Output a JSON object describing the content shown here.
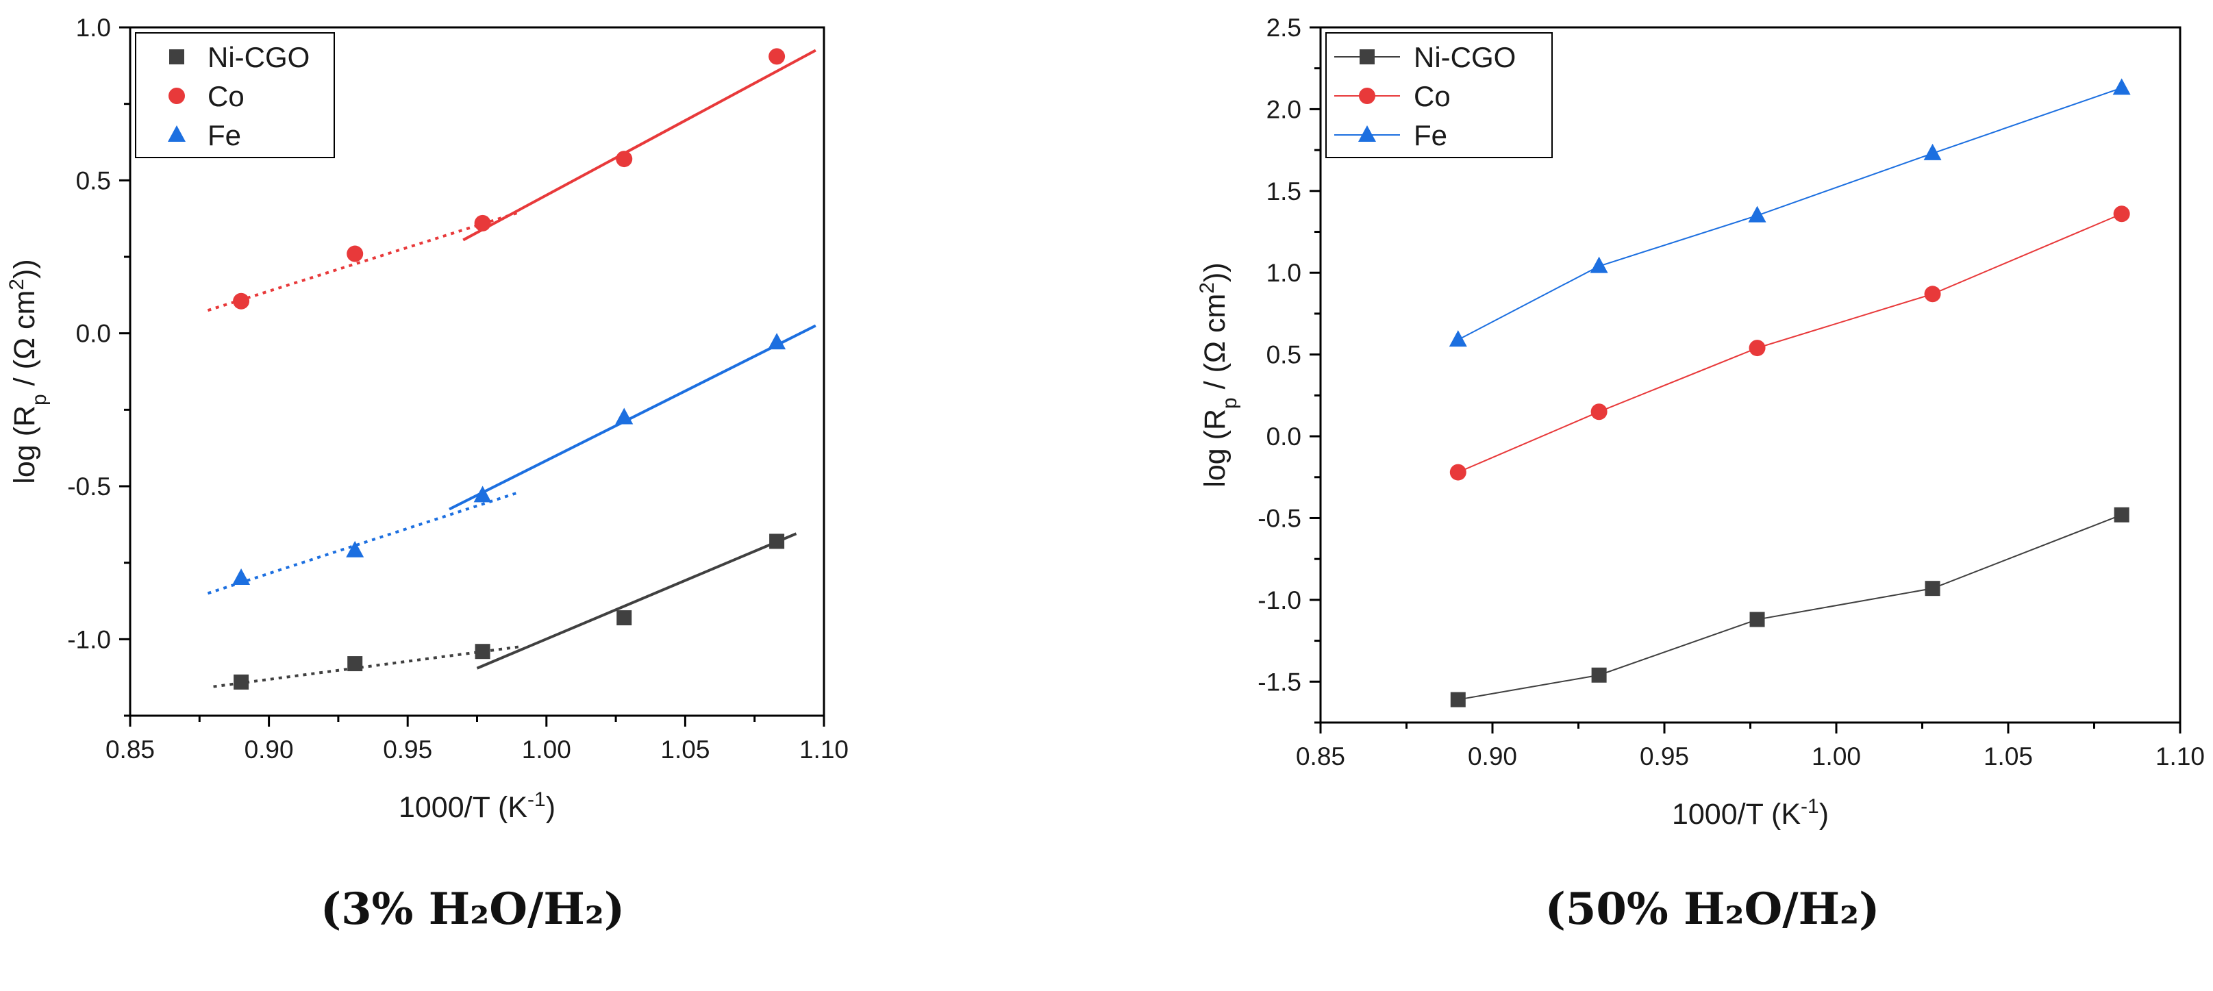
{
  "chart_data": [
    {
      "type": "scatter",
      "panel": "left",
      "xlabel": {
        "base": "1000/T (K",
        "sup": "-1",
        "tail": ")"
      },
      "ylabel": {
        "base": "log (R",
        "sub": "p",
        "mid": " / (Ω cm",
        "sup": "2",
        "tail": "))"
      },
      "xlim": [
        0.85,
        1.1
      ],
      "ylim": [
        -1.25,
        1.0
      ],
      "xticks": [
        "0.85",
        "0.90",
        "0.95",
        "1.00",
        "1.05",
        "1.10"
      ],
      "yticks": [
        "-1.0",
        "-0.5",
        "0.0",
        "0.5",
        "1.0"
      ],
      "ytick_values": [
        -1.0,
        -0.5,
        0.0,
        0.5,
        1.0
      ],
      "xtick_values": [
        0.85,
        0.9,
        0.95,
        1.0,
        1.05,
        1.1
      ],
      "legend_position": "top-left",
      "series": [
        {
          "name": "Ni-CGO",
          "color": "#404040",
          "marker": "square",
          "x": [
            0.89,
            0.931,
            0.977,
            1.028,
            1.083
          ],
          "y": [
            -1.14,
            -1.08,
            -1.04,
            -0.93,
            -0.68
          ],
          "fits": [
            {
              "style": "dotted",
              "x": [
                0.88,
                0.99
              ],
              "y": [
                -1.155,
                -1.025
              ]
            },
            {
              "style": "solid",
              "x": [
                0.975,
                1.09
              ],
              "y": [
                -1.095,
                -0.655
              ]
            }
          ]
        },
        {
          "name": "Co",
          "color": "#e8393a",
          "marker": "circle",
          "x": [
            0.89,
            0.931,
            0.977,
            1.028,
            1.083
          ],
          "y": [
            0.105,
            0.26,
            0.36,
            0.57,
            0.905
          ],
          "fits": [
            {
              "style": "dotted",
              "x": [
                0.878,
                0.99
              ],
              "y": [
                0.075,
                0.395
              ]
            },
            {
              "style": "solid",
              "x": [
                0.97,
                1.097
              ],
              "y": [
                0.305,
                0.925
              ]
            }
          ]
        },
        {
          "name": "Fe",
          "color": "#1c6fe0",
          "marker": "triangle",
          "x": [
            0.89,
            0.931,
            0.977,
            1.028,
            1.083
          ],
          "y": [
            -0.8,
            -0.71,
            -0.53,
            -0.275,
            -0.03
          ],
          "fits": [
            {
              "style": "dotted",
              "x": [
                0.878,
                0.99
              ],
              "y": [
                -0.85,
                -0.52
              ]
            },
            {
              "style": "solid",
              "x": [
                0.965,
                1.097
              ],
              "y": [
                -0.575,
                0.025
              ]
            }
          ]
        }
      ]
    },
    {
      "type": "line",
      "panel": "right",
      "xlabel": {
        "base": "1000/T (K",
        "sup": "-1",
        "tail": ")"
      },
      "ylabel": {
        "base": "log (R",
        "sub": "p",
        "mid": " / (Ω cm",
        "sup": "2",
        "tail": "))"
      },
      "xlim": [
        0.85,
        1.1
      ],
      "ylim": [
        -1.75,
        2.5
      ],
      "xticks": [
        "0.85",
        "0.90",
        "0.95",
        "1.00",
        "1.05",
        "1.10"
      ],
      "yticks": [
        "-1.5",
        "-1.0",
        "-0.5",
        "0.0",
        "0.5",
        "1.0",
        "1.5",
        "2.0",
        "2.5"
      ],
      "ytick_values": [
        -1.5,
        -1.0,
        -0.5,
        0.0,
        0.5,
        1.0,
        1.5,
        2.0,
        2.5
      ],
      "xtick_values": [
        0.85,
        0.9,
        0.95,
        1.0,
        1.05,
        1.1
      ],
      "legend_position": "top-left",
      "series": [
        {
          "name": "Ni-CGO",
          "color": "#404040",
          "marker": "square",
          "x": [
            0.89,
            0.931,
            0.977,
            1.028,
            1.083
          ],
          "y": [
            -1.61,
            -1.46,
            -1.12,
            -0.93,
            -0.48
          ]
        },
        {
          "name": "Co",
          "color": "#e8393a",
          "marker": "circle",
          "x": [
            0.89,
            0.931,
            0.977,
            1.028,
            1.083
          ],
          "y": [
            -0.22,
            0.15,
            0.54,
            0.87,
            1.36
          ]
        },
        {
          "name": "Fe",
          "color": "#1c6fe0",
          "marker": "triangle",
          "x": [
            0.89,
            0.931,
            0.977,
            1.028,
            1.083
          ],
          "y": [
            0.59,
            1.04,
            1.35,
            1.73,
            2.13
          ]
        }
      ]
    }
  ],
  "captions": {
    "left": "(3% H₂O/H₂)",
    "right": "(50% H₂O/H₂)"
  }
}
